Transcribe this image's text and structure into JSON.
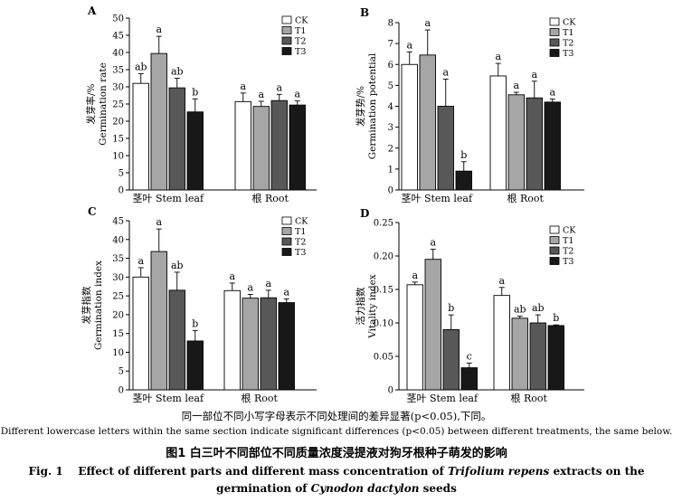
{
  "colors": {
    "CK": "#ffffff",
    "T1": "#a6a6a6",
    "T2": "#585858",
    "T3": "#181818"
  },
  "chart_data": [
    {
      "type": "bar",
      "panel_label": "A",
      "ylabel_cn": "发芽率/%",
      "ylabel_en": "Germination rate",
      "ylim": [
        0,
        50
      ],
      "yticks": [
        "0",
        "5",
        "10",
        "15",
        "20",
        "25",
        "30",
        "35",
        "40",
        "45",
        "50"
      ],
      "groups": [
        "茎叶  Stem leaf",
        "根  Root"
      ],
      "legend": [
        "CK",
        "T1",
        "T2",
        "T3"
      ],
      "series": [
        {
          "name": "CK",
          "values": [
            31,
            25.7
          ],
          "errors": [
            2.8,
            2.5
          ],
          "letters": [
            "ab",
            "a"
          ]
        },
        {
          "name": "T1",
          "values": [
            39.7,
            24.3
          ],
          "errors": [
            5,
            1.5
          ],
          "letters": [
            "a",
            "a"
          ]
        },
        {
          "name": "T2",
          "values": [
            29.7,
            26
          ],
          "errors": [
            2.8,
            1.8
          ],
          "letters": [
            "ab",
            "a"
          ]
        },
        {
          "name": "T3",
          "values": [
            22.7,
            24.7
          ],
          "errors": [
            3.8,
            1.2
          ],
          "letters": [
            "b",
            "a"
          ]
        }
      ]
    },
    {
      "type": "bar",
      "panel_label": "B",
      "ylabel_cn": "发芽势/%",
      "ylabel_en": "Germination potential",
      "ylim": [
        0,
        8
      ],
      "yticks": [
        "0",
        "1",
        "2",
        "3",
        "4",
        "5",
        "6",
        "7",
        "8"
      ],
      "groups": [
        "茎叶  Stem leaf",
        "根  Root"
      ],
      "legend": [
        "CK",
        "T1",
        "T2",
        "T3"
      ],
      "series": [
        {
          "name": "CK",
          "values": [
            6,
            5.45
          ],
          "errors": [
            0.6,
            0.6
          ],
          "letters": [
            "a",
            "a"
          ]
        },
        {
          "name": "T1",
          "values": [
            6.45,
            4.55
          ],
          "errors": [
            1.2,
            0.12
          ],
          "letters": [
            "a",
            "a"
          ]
        },
        {
          "name": "T2",
          "values": [
            4,
            4.4
          ],
          "errors": [
            1.3,
            0.8
          ],
          "letters": [
            "a",
            "a"
          ]
        },
        {
          "name": "T3",
          "values": [
            0.9,
            4.2
          ],
          "errors": [
            0.45,
            0.15
          ],
          "letters": [
            "b",
            "a"
          ]
        }
      ]
    },
    {
      "type": "bar",
      "panel_label": "C",
      "ylabel_cn": "发芽指数",
      "ylabel_en": "Germination index",
      "ylim": [
        0,
        45
      ],
      "yticks": [
        "0",
        "5",
        "10",
        "15",
        "20",
        "25",
        "30",
        "35",
        "40",
        "45"
      ],
      "groups": [
        "茎叶  Stem leaf",
        "根  Root"
      ],
      "legend": [
        "CK",
        "T1",
        "T2",
        "T3"
      ],
      "series": [
        {
          "name": "CK",
          "values": [
            30,
            26.4
          ],
          "errors": [
            2.5,
            2
          ],
          "letters": [
            "a",
            "a"
          ]
        },
        {
          "name": "T1",
          "values": [
            36.8,
            24.4
          ],
          "errors": [
            6,
            1
          ],
          "letters": [
            "a",
            "a"
          ]
        },
        {
          "name": "T2",
          "values": [
            26.5,
            24.5
          ],
          "errors": [
            4.8,
            2
          ],
          "letters": [
            "ab",
            "a"
          ]
        },
        {
          "name": "T3",
          "values": [
            13,
            23.2
          ],
          "errors": [
            2.8,
            1
          ],
          "letters": [
            "b",
            "a"
          ]
        }
      ]
    },
    {
      "type": "bar",
      "panel_label": "D",
      "ylabel_cn": "活力指数",
      "ylabel_en": "Vitality index",
      "ylim": [
        0,
        0.25
      ],
      "yticks": [
        "0",
        "0.05",
        "0.10",
        "0.15",
        "0.20",
        "0.25"
      ],
      "groups": [
        "茎叶  Stem leaf",
        "根  Root"
      ],
      "legend": [
        "CK",
        "T1",
        "T2",
        "T3"
      ],
      "series": [
        {
          "name": "CK",
          "values": [
            0.157,
            0.141
          ],
          "errors": [
            0.004,
            0.012
          ],
          "letters": [
            "a",
            "a"
          ]
        },
        {
          "name": "T1",
          "values": [
            0.195,
            0.107
          ],
          "errors": [
            0.015,
            0.003
          ],
          "letters": [
            "a",
            "ab"
          ]
        },
        {
          "name": "T2",
          "values": [
            0.09,
            0.1
          ],
          "errors": [
            0.022,
            0.012
          ],
          "letters": [
            "b",
            "ab"
          ]
        },
        {
          "name": "T3",
          "values": [
            0.033,
            0.096
          ],
          "errors": [
            0.007,
            0.001
          ],
          "letters": [
            "c",
            "b"
          ]
        }
      ]
    }
  ],
  "caption": {
    "note_cn": "同一部位不同小写字母表示不同处理间的差异显著(p<0.05),下同。",
    "note_en": "Different lowercase letters within the same section indicate significant differences (p<0.05) between different treatments, the same below.",
    "fig_cn": "图1   白三叶不同部位不同质量浓度浸提液对狗牙根种子萌发的影响",
    "fig_en_label": "Fig. 1",
    "fig_en_pre": "Effect of different parts and different mass concentration of",
    "fig_en_sp1": "Trifolium repens",
    "fig_en_mid": "extracts on the germination of",
    "fig_en_sp2": "Cynodon dactylon",
    "fig_en_post": "seeds"
  }
}
